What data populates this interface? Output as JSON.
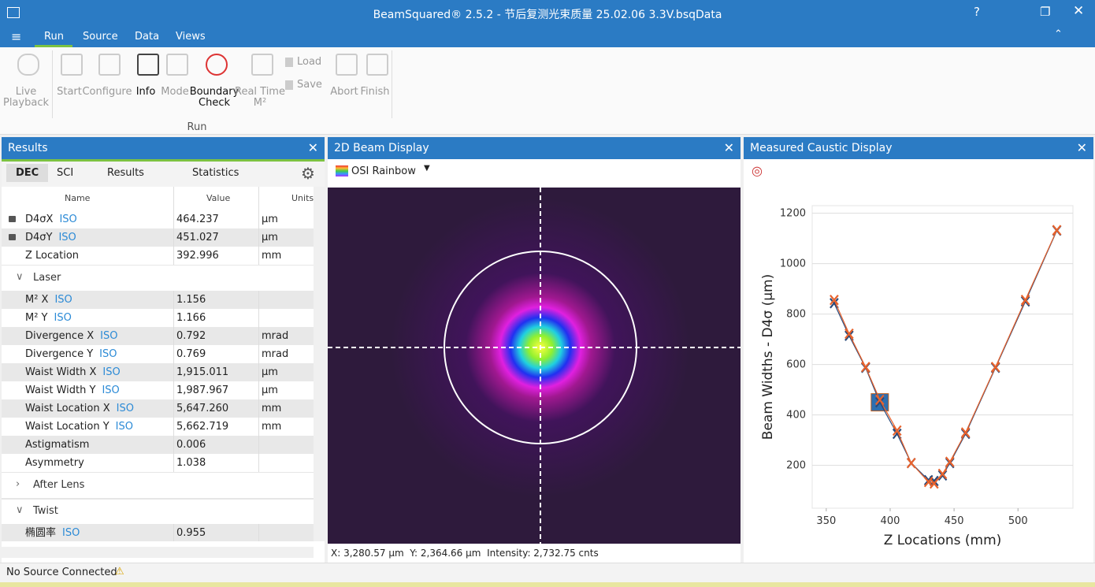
{
  "title_bar": {
    "title": "BeamSquared® 2.5.2 - 节后复测光束质量 25.02.06  3.3V.bsqData"
  },
  "menu": {
    "tabs": [
      "Run",
      "Source",
      "Data",
      "Views"
    ]
  },
  "ribbon": {
    "buttons": [
      "Live Playback",
      "Start",
      "Configure",
      "Info",
      "Mode",
      "Boundary Check",
      "Real Time M²",
      "Load",
      "Save",
      "Abort",
      "Finish"
    ],
    "group": "Run"
  },
  "results_panel": {
    "title": "Results",
    "toolbar": [
      "DEC",
      "SCI",
      "Results",
      "Statistics"
    ],
    "columns": [
      "Name",
      "Value",
      "Units"
    ],
    "items": [
      {
        "name": "D4σX",
        "tag": "ISO",
        "value": "464.237",
        "unit": "µm",
        "locked": true
      },
      {
        "name": "D4σY",
        "tag": "ISO",
        "value": "451.027",
        "unit": "µm",
        "locked": true
      },
      {
        "name": "Z Location",
        "value": "392.996",
        "unit": "mm"
      },
      {
        "section": "Laser",
        "expanded": true
      },
      {
        "name": "M² X",
        "tag": "ISO",
        "value": "1.156"
      },
      {
        "name": "M² Y",
        "tag": "ISO",
        "value": "1.166"
      },
      {
        "name": "Divergence X",
        "tag": "ISO",
        "value": "0.792",
        "unit": "mrad"
      },
      {
        "name": "Divergence Y",
        "tag": "ISO",
        "value": "0.769",
        "unit": "mrad"
      },
      {
        "name": "Waist Width X",
        "tag": "ISO",
        "value": "1,915.011",
        "unit": "µm"
      },
      {
        "name": "Waist Width Y",
        "tag": "ISO",
        "value": "1,987.967",
        "unit": "µm"
      },
      {
        "name": "Waist Location X",
        "tag": "ISO",
        "value": "5,647.260",
        "unit": "mm"
      },
      {
        "name": "Waist Location Y",
        "tag": "ISO",
        "value": "5,662.719",
        "unit": "mm"
      },
      {
        "name": "Astigmatism",
        "value": "0.006"
      },
      {
        "name": "Asymmetry",
        "value": "1.038"
      },
      {
        "section": "After Lens",
        "expanded": false
      },
      {
        "section": "Twist",
        "expanded": true
      },
      {
        "name": "椭圆率",
        "tag": "ISO",
        "value": "0.955"
      }
    ]
  },
  "beam_panel": {
    "title": "2D Beam Display",
    "palette": "OSI Rainbow",
    "readout": "X: 3,280.57 µm  Y: 2,364.66 µm  Intensity: 2,732.75 cnts"
  },
  "caustic_panel": {
    "title": "Measured Caustic Display"
  },
  "chart_data": {
    "type": "scatter",
    "x_label": "Z Locations (mm)",
    "y_label": "Beam Widths - D4σ (µm)",
    "x": [
      356.2,
      367.9,
      380.8,
      391.9,
      405.4,
      416.5,
      430,
      434.4,
      441,
      446.7,
      459,
      482.4,
      505.8,
      530.4
    ],
    "series": [
      {
        "color": "#2a4a7a",
        "values": [
          843,
          714,
          587,
          450,
          325,
          209,
          141,
          138,
          160,
          209,
          325,
          587,
          850,
          1131
        ]
      },
      {
        "color": "#e8622c",
        "values": [
          856,
          722,
          590,
          460,
          338,
          209,
          134,
          128,
          166,
          214,
          330,
          590,
          856,
          1133
        ]
      }
    ],
    "xlim": [
      339,
      543
    ],
    "ylim": [
      30,
      1230
    ],
    "xticks": [
      350,
      400,
      450,
      500
    ],
    "yticks": [
      200,
      400,
      600,
      800,
      1000,
      1200
    ],
    "grid": true
  },
  "status_bar": {
    "text": "No Source Connected"
  }
}
